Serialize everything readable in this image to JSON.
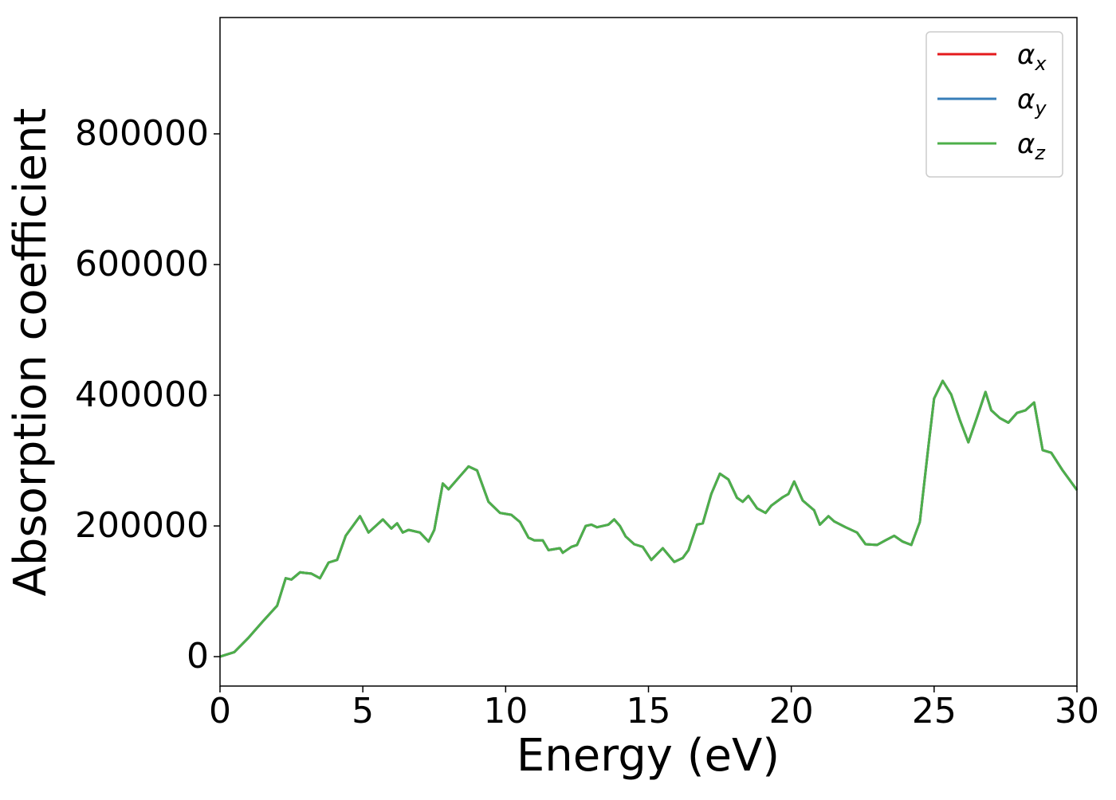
{
  "chart_data": {
    "type": "line",
    "xlabel": "Energy (eV)",
    "ylabel": "Absorption coefficient",
    "x": [
      0,
      0.5,
      1,
      1.5,
      2,
      2.3,
      2.5,
      2.8,
      3.2,
      3.5,
      3.8,
      4.1,
      4.4,
      4.9,
      5.2,
      5.7,
      6.0,
      6.2,
      6.4,
      6.6,
      7.0,
      7.3,
      7.5,
      7.8,
      8.0,
      8.4,
      8.7,
      9.0,
      9.4,
      9.8,
      10.2,
      10.5,
      10.8,
      11.0,
      11.3,
      11.5,
      11.9,
      12.0,
      12.3,
      12.5,
      12.8,
      13.0,
      13.2,
      13.6,
      13.8,
      14.0,
      14.2,
      14.5,
      14.8,
      15.1,
      15.5,
      15.9,
      16.2,
      16.4,
      16.7,
      16.9,
      17.2,
      17.5,
      17.8,
      18.1,
      18.3,
      18.5,
      18.8,
      19.1,
      19.3,
      19.7,
      19.9,
      20.1,
      20.4,
      20.8,
      21.0,
      21.3,
      21.5,
      21.9,
      22.3,
      22.6,
      23.0,
      23.3,
      23.6,
      23.9,
      24.2,
      24.5,
      24.8,
      25.0,
      25.3,
      25.6,
      25.9,
      26.2,
      26.5,
      26.8,
      27.0,
      27.3,
      27.6,
      27.9,
      28.2,
      28.5,
      28.8,
      29.1,
      29.5,
      30.0
    ],
    "series": [
      {
        "name": "αx",
        "color": "#e41a1c",
        "values": [
          0,
          7000,
          29000,
          54000,
          78000,
          120000,
          118000,
          129000,
          127000,
          120000,
          144000,
          148000,
          185000,
          215000,
          190000,
          210000,
          196000,
          204000,
          190000,
          194000,
          190000,
          176000,
          194000,
          265000,
          256000,
          276000,
          291000,
          285000,
          237000,
          220000,
          217000,
          206000,
          182000,
          178000,
          178000,
          163000,
          166000,
          159000,
          168000,
          171000,
          200000,
          202000,
          198000,
          202000,
          210000,
          200000,
          184000,
          172000,
          168000,
          148000,
          166000,
          145000,
          151000,
          163000,
          202000,
          204000,
          249000,
          280000,
          271000,
          243000,
          237000,
          246000,
          227000,
          220000,
          231000,
          244000,
          249000,
          268000,
          239000,
          224000,
          202000,
          215000,
          207000,
          198000,
          190000,
          172000,
          171000,
          178000,
          185000,
          176000,
          171000,
          206000,
          322000,
          395000,
          422000,
          401000,
          362000,
          328000,
          366000,
          405000,
          377000,
          365000,
          358000,
          373000,
          377000,
          389000,
          316000,
          312000,
          285000,
          255000
        ]
      },
      {
        "name": "αy",
        "color": "#377eb8",
        "values": [
          0,
          7000,
          29000,
          54000,
          78000,
          120000,
          118000,
          129000,
          127000,
          120000,
          144000,
          148000,
          185000,
          215000,
          190000,
          210000,
          196000,
          204000,
          190000,
          194000,
          190000,
          176000,
          194000,
          265000,
          256000,
          276000,
          291000,
          285000,
          237000,
          220000,
          217000,
          206000,
          182000,
          178000,
          178000,
          163000,
          166000,
          159000,
          168000,
          171000,
          200000,
          202000,
          198000,
          202000,
          210000,
          200000,
          184000,
          172000,
          168000,
          148000,
          166000,
          145000,
          151000,
          163000,
          202000,
          204000,
          249000,
          280000,
          271000,
          243000,
          237000,
          246000,
          227000,
          220000,
          231000,
          244000,
          249000,
          268000,
          239000,
          224000,
          202000,
          215000,
          207000,
          198000,
          190000,
          172000,
          171000,
          178000,
          185000,
          176000,
          171000,
          206000,
          322000,
          395000,
          422000,
          401000,
          362000,
          328000,
          366000,
          405000,
          377000,
          365000,
          358000,
          373000,
          377000,
          389000,
          316000,
          312000,
          285000,
          255000
        ]
      },
      {
        "name": "αz",
        "color": "#4daf4a",
        "values": [
          0,
          7000,
          29000,
          54000,
          78000,
          120000,
          118000,
          129000,
          127000,
          120000,
          144000,
          148000,
          185000,
          215000,
          190000,
          210000,
          196000,
          204000,
          190000,
          194000,
          190000,
          176000,
          194000,
          265000,
          256000,
          276000,
          291000,
          285000,
          237000,
          220000,
          217000,
          206000,
          182000,
          178000,
          178000,
          163000,
          166000,
          159000,
          168000,
          171000,
          200000,
          202000,
          198000,
          202000,
          210000,
          200000,
          184000,
          172000,
          168000,
          148000,
          166000,
          145000,
          151000,
          163000,
          202000,
          204000,
          249000,
          280000,
          271000,
          243000,
          237000,
          246000,
          227000,
          220000,
          231000,
          244000,
          249000,
          268000,
          239000,
          224000,
          202000,
          215000,
          207000,
          198000,
          190000,
          172000,
          171000,
          178000,
          185000,
          176000,
          171000,
          206000,
          322000,
          395000,
          422000,
          401000,
          362000,
          328000,
          366000,
          405000,
          377000,
          365000,
          358000,
          373000,
          377000,
          389000,
          316000,
          312000,
          285000,
          255000
        ]
      }
    ],
    "xlim": [
      0,
      30
    ],
    "xticks": [
      0,
      5,
      10,
      15,
      20,
      25,
      30
    ],
    "ylim": [
      -45000,
      978000
    ],
    "yticks": [
      0,
      200000,
      400000,
      600000,
      800000
    ],
    "legend": "upper right",
    "grid": false
  }
}
